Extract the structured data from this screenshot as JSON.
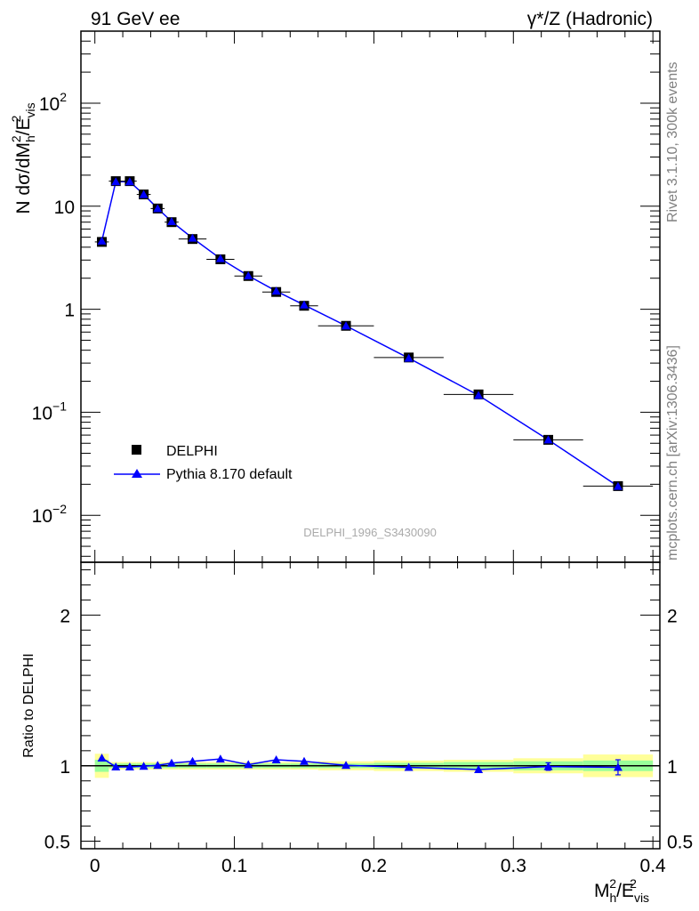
{
  "header": {
    "left": "91 GeV ee",
    "right": "γ*/Z (Hadronic)"
  },
  "side": {
    "top": "Rivet 3.1.10,  300k events",
    "bottom": "mcplots.cern.ch [arXiv:1306.3436]"
  },
  "analysis_label": "DELPHI_1996_S3430090",
  "ylabel_main": {
    "base": "N dσ/dM",
    "sub1": "h",
    "sup1": "2",
    "mid": "/E",
    "sub2": "vis",
    "sup2": "2"
  },
  "ylabel_ratio": "Ratio to DELPHI",
  "xlabel": {
    "base": "M",
    "sub1": "h",
    "sup1": "2",
    "mid": "/E",
    "sub2": "vis",
    "sup2": "2"
  },
  "legend": {
    "data": "DELPHI",
    "mc": "Pythia 8.170 default"
  },
  "colors": {
    "data": "#000000",
    "mc": "#0000ff",
    "band_inner": "#99ff99",
    "band_outer": "#ffff99",
    "side_text": "#808080"
  },
  "chart_data": [
    {
      "type": "scatter",
      "panel": "main",
      "yscale": "log",
      "xlim": [
        -0.01,
        0.405
      ],
      "ylim": [
        0.0035,
        500
      ],
      "xticks": [
        "0",
        "0.1",
        "0.2",
        "0.3",
        "0.4"
      ],
      "yticks": [
        {
          "base": "10",
          "exp": "−2"
        },
        {
          "base": "10",
          "exp": "−1"
        },
        {
          "base": "1",
          "exp": ""
        },
        {
          "base": "10",
          "exp": ""
        },
        {
          "base": "10",
          "exp": "2"
        }
      ],
      "series": [
        {
          "name": "DELPHI",
          "x": [
            0.005,
            0.015,
            0.025,
            0.035,
            0.045,
            0.055,
            0.07,
            0.09,
            0.11,
            0.13,
            0.15,
            0.18,
            0.225,
            0.275,
            0.325,
            0.375
          ],
          "y": [
            4.5,
            17.5,
            17.5,
            13.0,
            9.5,
            7.0,
            4.8,
            3.05,
            2.1,
            1.47,
            1.08,
            0.69,
            0.34,
            0.149,
            0.054,
            0.0192
          ],
          "xerr": [
            0.005,
            0.005,
            0.005,
            0.005,
            0.005,
            0.005,
            0.01,
            0.01,
            0.01,
            0.01,
            0.01,
            0.02,
            0.025,
            0.025,
            0.025,
            0.025
          ]
        },
        {
          "name": "Pythia 8.170 default",
          "x": [
            0.005,
            0.015,
            0.025,
            0.035,
            0.045,
            0.055,
            0.07,
            0.09,
            0.11,
            0.13,
            0.15,
            0.18,
            0.225,
            0.275,
            0.325,
            0.375
          ],
          "y": [
            4.6,
            17.3,
            17.3,
            13.0,
            9.5,
            7.1,
            4.9,
            3.1,
            2.11,
            1.5,
            1.1,
            0.69,
            0.335,
            0.146,
            0.054,
            0.0191
          ]
        }
      ]
    },
    {
      "type": "line",
      "panel": "ratio",
      "xlim": [
        -0.01,
        0.405
      ],
      "ylim": [
        0.45,
        2.35
      ],
      "yticks": [
        "0.5",
        "1",
        "2"
      ],
      "x": [
        0.005,
        0.015,
        0.025,
        0.035,
        0.045,
        0.055,
        0.07,
        0.09,
        0.11,
        0.13,
        0.15,
        0.18,
        0.225,
        0.275,
        0.325,
        0.375
      ],
      "xerr": [
        0.005,
        0.005,
        0.005,
        0.005,
        0.005,
        0.005,
        0.01,
        0.01,
        0.01,
        0.01,
        0.01,
        0.02,
        0.025,
        0.025,
        0.025,
        0.025
      ],
      "mc_ratio": [
        1.052,
        0.993,
        0.993,
        0.997,
        1.003,
        1.018,
        1.03,
        1.045,
        1.008,
        1.04,
        1.03,
        1.003,
        0.99,
        0.975,
        0.995,
        0.99
      ],
      "mc_err": [
        0,
        0,
        0,
        0,
        0,
        0,
        0,
        0,
        0,
        0,
        0,
        0,
        0,
        0,
        0.025,
        0.05
      ],
      "band_inner": [
        0.04,
        0.015,
        0.015,
        0.015,
        0.015,
        0.015,
        0.015,
        0.015,
        0.015,
        0.015,
        0.015,
        0.015,
        0.02,
        0.025,
        0.03,
        0.035
      ],
      "band_outer": [
        0.08,
        0.025,
        0.025,
        0.025,
        0.025,
        0.025,
        0.025,
        0.025,
        0.025,
        0.025,
        0.025,
        0.03,
        0.035,
        0.04,
        0.05,
        0.075
      ]
    }
  ]
}
